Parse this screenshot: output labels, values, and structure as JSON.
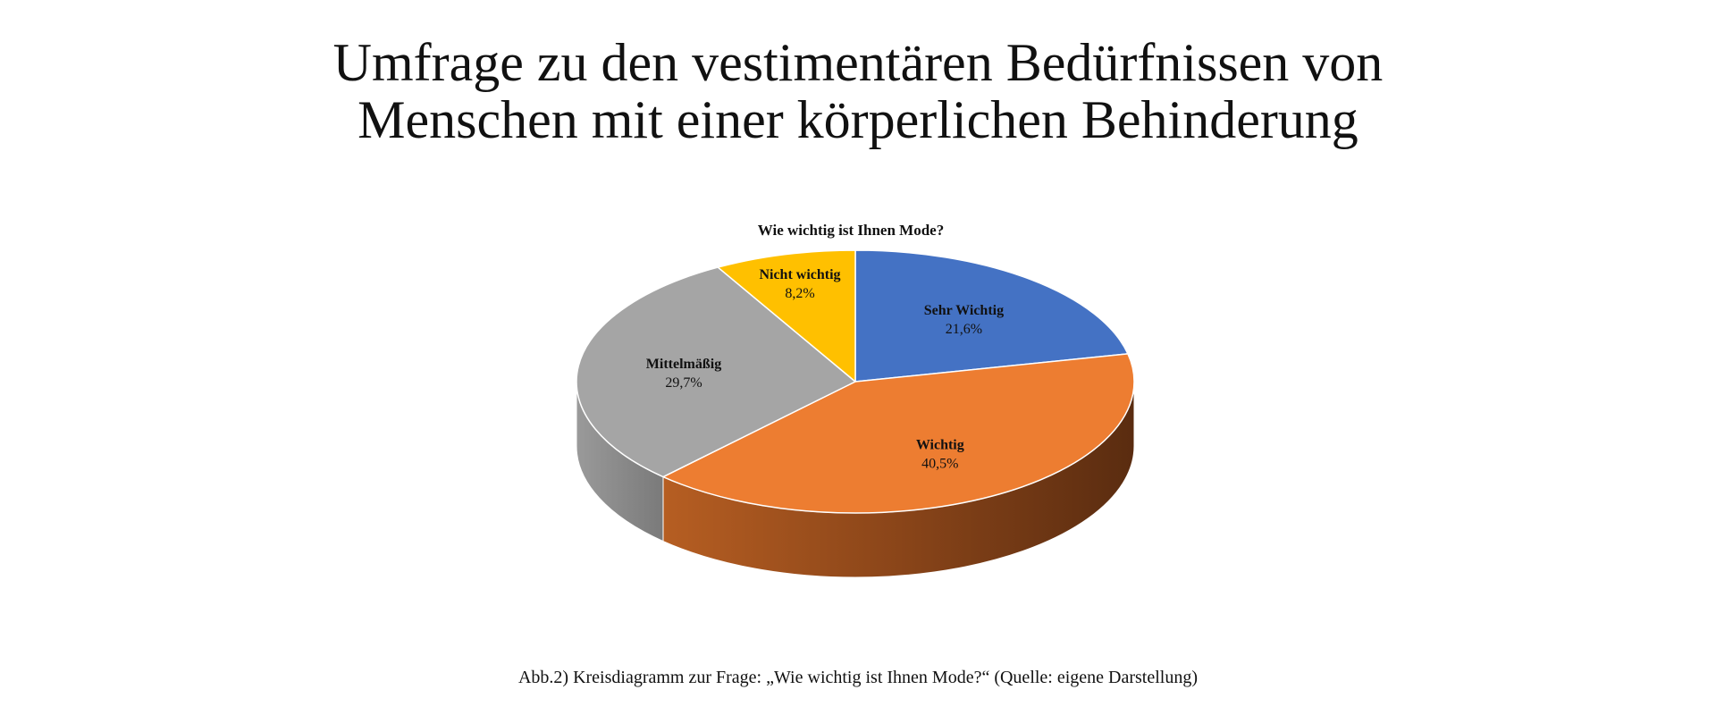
{
  "page": {
    "title_line1": "Umfrage zu den vestimentären Bedürfnissen von",
    "title_line2": "Menschen mit einer körperlichen Behinderung",
    "caption": "Abb.2) Kreisdiagramm zur Frage: „Wie wichtig ist Ihnen Mode?“ (Quelle: eigene Darstellung)"
  },
  "chart_data": {
    "type": "pie",
    "title": "Wie wichtig ist Ihnen Mode?",
    "style": "3d",
    "slices": [
      {
        "label": "Sehr Wichtig",
        "value": 21.6,
        "value_label": "21,6%",
        "color": "#4472C4"
      },
      {
        "label": "Wichtig",
        "value": 40.5,
        "value_label": "40,5%",
        "color": "#ED7D31"
      },
      {
        "label": "Mittelmäßig",
        "value": 29.7,
        "value_label": "29,7%",
        "color": "#A5A5A5"
      },
      {
        "label": "Nicht wichtig",
        "value": 8.2,
        "value_label": "8,2%",
        "color": "#FFC000"
      }
    ]
  }
}
